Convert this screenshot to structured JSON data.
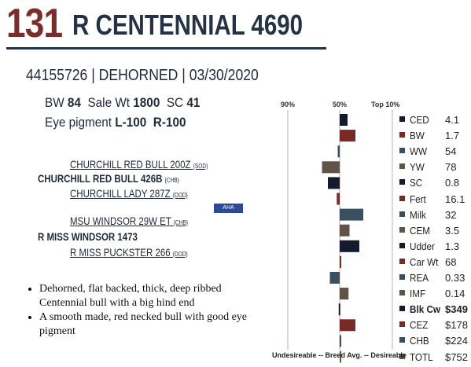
{
  "header": {
    "lot": "131",
    "name": "R CENTENNIAL 4690",
    "registration_line": "44155726 | DEHORNED | 03/30/2020"
  },
  "stats": {
    "bw_label": "BW",
    "bw_value": "84",
    "sale_label": "Sale Wt",
    "sale_value": "1800",
    "sc_label": "SC",
    "sc_value": "41",
    "eye_label": "Eye pigment",
    "eye_left": "L-100",
    "eye_right": "R-100"
  },
  "pedigree": [
    {
      "name": "CHURCHILL RED BULL 200Z",
      "tag": "{SOD}",
      "style": "u"
    },
    {
      "name": "CHURCHILL RED BULL 426B",
      "tag": "{CHB}",
      "style": "b"
    },
    {
      "name": "CHURCHILL LADY 287Z",
      "tag": "{DOD}",
      "style": "u"
    },
    {
      "name": "MSU WINDSOR 29W ET",
      "tag": "{CHB}",
      "style": "u"
    },
    {
      "name": "R MISS WINDSOR 1473",
      "tag": "",
      "style": "b"
    },
    {
      "name": "R MISS PUCKSTER 266",
      "tag": "{DOD}",
      "style": "u"
    }
  ],
  "logo_text": "AHA",
  "description": [
    "Dehorned, flat backed, thick, deep ribbed Centennial bull with a big hind end",
    "A smooth made, red necked bull with good eye pigment"
  ],
  "chart_data": {
    "type": "bar",
    "orientation": "horizontal",
    "percentile_labels": [
      "90%",
      "50%",
      "Top 10%"
    ],
    "axis_caption": "Undesireable -- Breed Avg. -- Desireable",
    "traits": [
      {
        "name": "CED",
        "value": "4.1",
        "score": 0.8,
        "color": "#141b2d",
        "bold": false
      },
      {
        "name": "BW",
        "value": "1.7",
        "score": 1.6,
        "color": "#7a2a26",
        "bold": false
      },
      {
        "name": "WW",
        "value": "54",
        "score": -0.2,
        "color": "#3a5060",
        "bold": false
      },
      {
        "name": "YW",
        "value": "78",
        "score": -1.8,
        "color": "#5f5446",
        "bold": false
      },
      {
        "name": "SC",
        "value": "0.8",
        "score": -1.2,
        "color": "#141b2d",
        "bold": false
      },
      {
        "name": "Fert",
        "value": "16.1",
        "score": -0.3,
        "color": "#7a2a26",
        "bold": false
      },
      {
        "name": "Milk",
        "value": "32",
        "score": 2.4,
        "color": "#3a5060",
        "bold": false
      },
      {
        "name": "CEM",
        "value": "3.5",
        "score": 1.0,
        "color": "#5f5446",
        "bold": false
      },
      {
        "name": "Udder",
        "value": "1.3",
        "score": 2.0,
        "color": "#141b2d",
        "bold": false
      },
      {
        "name": "Car Wt",
        "value": "68",
        "score": 0.1,
        "color": "#7a2a26",
        "bold": false
      },
      {
        "name": "REA",
        "value": "0.33",
        "score": -1.0,
        "color": "#3a5060",
        "bold": false
      },
      {
        "name": "IMF",
        "value": "0.14",
        "score": 0.9,
        "color": "#5f5446",
        "bold": false
      },
      {
        "name": "Blk Cw",
        "value": "$349",
        "score": -0.1,
        "color": "#141b2d",
        "bold": true
      },
      {
        "name": "CEZ",
        "value": "$178",
        "score": 1.6,
        "color": "#7a2a26",
        "bold": false
      },
      {
        "name": "CHB",
        "value": "$224",
        "score": 0.0,
        "color": "#3a5060",
        "bold": false
      },
      {
        "name": "TOTL",
        "value": "$752",
        "score": 0.1,
        "color": "#5f5446",
        "bold": false
      }
    ]
  }
}
